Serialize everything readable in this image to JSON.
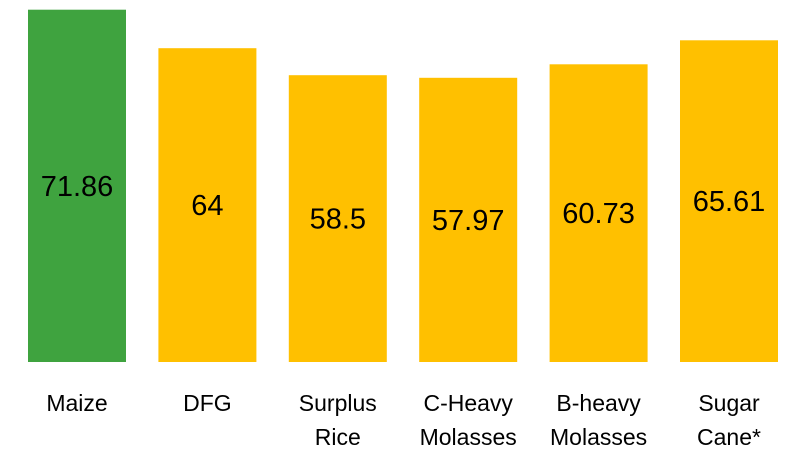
{
  "chart_data": {
    "type": "bar",
    "categories": [
      [
        "Maize"
      ],
      [
        "DFG"
      ],
      [
        "Surplus",
        "Rice"
      ],
      [
        "C-Heavy",
        "Molasses"
      ],
      [
        "B-heavy",
        "Molasses"
      ],
      [
        "Sugar",
        "Cane*"
      ]
    ],
    "values": [
      71.86,
      64,
      58.5,
      57.97,
      60.73,
      65.61
    ],
    "value_labels": [
      "71.86",
      "64",
      "58.5",
      "57.97",
      "60.73",
      "65.61"
    ],
    "colors": [
      "#3fa33f",
      "#ffc000",
      "#ffc000",
      "#ffc000",
      "#ffc000",
      "#ffc000"
    ],
    "ylim": [
      0,
      72
    ],
    "grid": false,
    "legend": "none",
    "title": "",
    "xlabel": "",
    "ylabel": ""
  }
}
